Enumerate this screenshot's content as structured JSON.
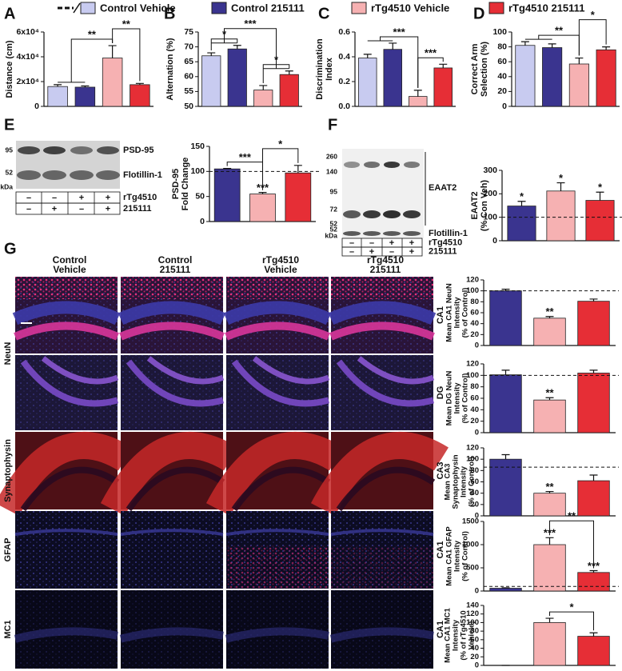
{
  "legend": [
    {
      "name": "Control Vehicle",
      "color": "#c8cbf0"
    },
    {
      "name": "Control 215111",
      "color": "#3a348f"
    },
    {
      "name": "rTg4510 Vehicle",
      "color": "#f6b1b2"
    },
    {
      "name": "rTg4510 215111",
      "color": "#e62e36"
    }
  ],
  "chart_data": [
    {
      "type": "bar",
      "panel": "A",
      "ylabel": [
        "Distance (cm)"
      ],
      "groups": [
        0,
        1,
        2,
        3
      ],
      "values": [
        16000,
        15500,
        39000,
        17500
      ],
      "errors": [
        1500,
        1000,
        10000,
        1000
      ],
      "ylim": [
        0,
        60000
      ],
      "yticks": [
        0,
        {
          "value": 20000,
          "label": "2x10⁴"
        },
        {
          "value": 40000,
          "label": "4x10⁴"
        },
        {
          "value": 60000,
          "label": "6x10⁴"
        }
      ],
      "annotations": [
        {
          "text": "**",
          "left": [
            0,
            1
          ],
          "right": [
            2
          ]
        },
        {
          "text": "**",
          "left": [
            2
          ],
          "right": [
            3
          ]
        }
      ]
    },
    {
      "type": "bar",
      "panel": "B",
      "ylabel": [
        "Alternation (%)"
      ],
      "groups": [
        0,
        1,
        2,
        3
      ],
      "values": [
        67,
        69.3,
        55.5,
        60.7
      ],
      "errors": [
        1,
        1.2,
        1.5,
        1.2
      ],
      "ylim": [
        50,
        75
      ],
      "yticks": [
        50,
        55,
        60,
        65,
        70,
        75
      ],
      "annotations": [
        {
          "text": "*",
          "left": [
            0
          ],
          "right": [
            1
          ]
        },
        {
          "text": "***",
          "left": [
            0,
            1
          ],
          "right": [
            2,
            3
          ]
        },
        {
          "text": "*",
          "left": [
            2
          ],
          "right": [
            3
          ]
        }
      ]
    },
    {
      "type": "bar",
      "panel": "C",
      "ylabel": [
        "Discrimination",
        "Index"
      ],
      "groups": [
        0,
        1,
        2,
        3
      ],
      "values": [
        0.39,
        0.46,
        0.08,
        0.31
      ],
      "errors": [
        0.03,
        0.05,
        0.05,
        0.03
      ],
      "ylim": [
        0,
        0.6
      ],
      "yticks": [
        {
          "value": 0,
          "label": "0.0"
        },
        0.2,
        0.4,
        0.6
      ],
      "annotations": [
        {
          "text": "***",
          "left": [
            0,
            1
          ],
          "right": [
            2
          ]
        },
        {
          "text": "***",
          "left": [
            2
          ],
          "right": [
            3
          ]
        }
      ]
    },
    {
      "type": "bar",
      "panel": "D",
      "ylabel": [
        "Correct Arm",
        "Selection (%)"
      ],
      "groups": [
        0,
        1,
        2,
        3
      ],
      "values": [
        82,
        79,
        57,
        76
      ],
      "errors": [
        5,
        5,
        8,
        4
      ],
      "ylim": [
        0,
        100
      ],
      "yticks": [
        0,
        20,
        40,
        60,
        80,
        100
      ],
      "annotations": [
        {
          "text": "**",
          "left": [
            0,
            1
          ],
          "right": [
            2
          ]
        },
        {
          "text": "*",
          "left": [
            2
          ],
          "right": [
            3
          ]
        }
      ]
    },
    {
      "type": "bar",
      "ylabel": [
        "PSD-95",
        "Fold Change"
      ],
      "groups": [
        1,
        2,
        3
      ],
      "values": [
        105,
        55,
        97
      ],
      "errors": [
        1,
        3,
        15
      ],
      "refline": 100,
      "ylim": [
        0,
        150
      ],
      "yticks": [
        0,
        50,
        100,
        150
      ],
      "annotations": [
        {
          "text": "***",
          "left": [
            0
          ],
          "right": [
            1
          ]
        },
        {
          "text": "*",
          "left": [
            1
          ],
          "right": [
            2
          ]
        },
        {
          "text": "***",
          "left": [
            1
          ]
        }
      ]
    },
    {
      "type": "bar",
      "ylabel": [
        "EAAT2",
        "(% Con Veh)"
      ],
      "groups": [
        1,
        2,
        3
      ],
      "values": [
        148,
        212,
        172
      ],
      "errors": [
        20,
        35,
        35
      ],
      "refline": 100,
      "ylim": [
        0,
        300
      ],
      "yticks": [
        0,
        100,
        200,
        300
      ],
      "annotations": [
        {
          "text": "*",
          "left": [
            0
          ]
        },
        {
          "text": "*",
          "left": [
            1
          ]
        },
        {
          "text": "*",
          "left": [
            2
          ]
        }
      ]
    },
    {
      "type": "bar",
      "ylabel": [
        "Mean CA1 NeuN",
        "Intensity",
        "(% of Control)"
      ],
      "groups": [
        1,
        2,
        3
      ],
      "values": [
        100,
        50,
        81
      ],
      "errors": [
        3,
        3,
        4
      ],
      "refline": 100,
      "ylim": [
        0,
        120
      ],
      "yticks": [
        0,
        20,
        40,
        60,
        80,
        100,
        120
      ],
      "annotations": [
        {
          "text": "**",
          "left": [
            1
          ]
        }
      ]
    },
    {
      "type": "bar",
      "ylabel": [
        "Mean DG NeuN",
        "Intensity",
        "(% of Control)"
      ],
      "groups": [
        1,
        2,
        3
      ],
      "values": [
        101,
        57,
        104
      ],
      "errors": [
        8,
        4,
        5
      ],
      "refline": 100,
      "ylim": [
        0,
        120
      ],
      "yticks": [
        0,
        20,
        40,
        60,
        80,
        100,
        120
      ],
      "annotations": [
        {
          "text": "**",
          "left": [
            1
          ]
        }
      ]
    },
    {
      "type": "bar",
      "ylabel": [
        "Mean CA3",
        "Synaptophysin",
        "Intensity",
        "(% of Control)"
      ],
      "groups": [
        1,
        2,
        3
      ],
      "values": [
        100,
        40,
        62
      ],
      "errors": [
        8,
        3,
        10
      ],
      "refline": 86,
      "ylim": [
        0,
        120
      ],
      "yticks": [
        0,
        20,
        40,
        60,
        80,
        100,
        120
      ],
      "annotations": [
        {
          "text": "**",
          "left": [
            1
          ]
        }
      ]
    },
    {
      "type": "bar",
      "ylabel": [
        "Mean CA1 GFAP",
        "Intensity",
        "(% of Control)"
      ],
      "groups": [
        1,
        2,
        3
      ],
      "values": [
        60,
        1000,
        400
      ],
      "errors": [
        10,
        150,
        40
      ],
      "refline": 100,
      "ylim": [
        0,
        1500
      ],
      "yticks": [
        0,
        500,
        1000,
        1500
      ],
      "annotations": [
        {
          "text": "***",
          "left": [
            1
          ]
        },
        {
          "text": "***",
          "left": [
            2
          ]
        },
        {
          "text": "**",
          "left": [
            1
          ],
          "right": [
            2
          ]
        }
      ]
    },
    {
      "type": "bar",
      "ylabel": [
        "Mean CA1 MC1",
        "Intensity",
        "(% of rTg4510",
        "Vehicle)"
      ],
      "groups": [
        1,
        2,
        3
      ],
      "values": [
        0,
        100,
        68
      ],
      "errors": [
        0,
        10,
        8
      ],
      "ylim": [
        0,
        140
      ],
      "yticks": [
        0,
        20,
        40,
        60,
        80,
        100,
        120,
        140
      ],
      "annotations": [
        {
          "text": "*",
          "left": [
            1
          ],
          "right": [
            2
          ]
        }
      ]
    }
  ],
  "blot_e": {
    "panel": "E",
    "markers": [
      "95",
      "52"
    ],
    "unit": "kDa",
    "bands": [
      "PSD-95",
      "Flotillin-1"
    ],
    "rows": [
      {
        "name": "rTg4510",
        "signs": [
          "–",
          "–",
          "+",
          "+"
        ]
      },
      {
        "name": "215111",
        "signs": [
          "–",
          "+",
          "–",
          "+"
        ]
      }
    ]
  },
  "blot_f": {
    "panel": "F",
    "markers": [
      "260",
      "140",
      "95",
      "72",
      "52",
      "52"
    ],
    "unit": "kDa",
    "bands": [
      "EAAT2",
      "Flotillin-1"
    ],
    "rows": [
      {
        "name": "rTg4510",
        "signs": [
          "–",
          "–",
          "+",
          "+"
        ]
      },
      {
        "name": "215111",
        "signs": [
          "–",
          "+",
          "–",
          "+"
        ]
      }
    ]
  },
  "micrographs": {
    "panel": "G",
    "columns": [
      [
        "Control",
        "Vehicle"
      ],
      [
        "Control",
        "215111"
      ],
      [
        "rTg4510",
        "Vehicle"
      ],
      [
        "rTg4510",
        "215111"
      ]
    ],
    "stains": [
      {
        "name": "NeuN",
        "regions": [
          "CA1",
          "DG"
        ]
      },
      {
        "name": "Synaptophysin",
        "regions": [
          "CA3"
        ]
      },
      {
        "name": "GFAP",
        "regions": [
          "CA1"
        ]
      },
      {
        "name": "MC1",
        "regions": [
          "CA1"
        ]
      }
    ]
  }
}
